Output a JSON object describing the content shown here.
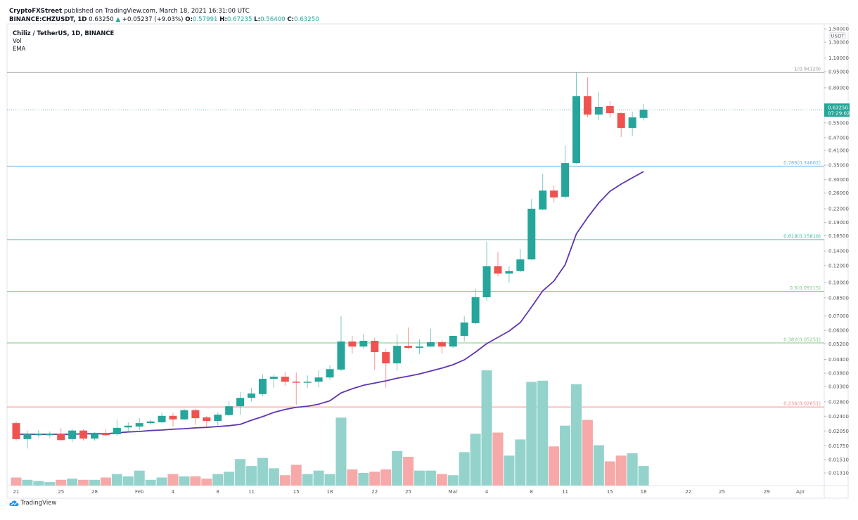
{
  "header": {
    "publisher": "CryptoFXStreet",
    "published_text": "published on TradingView.com, March 18, 2021 16:31:00 UTC",
    "symbol": "BINANCE:CHZUSDT, 1D",
    "last": "0.63250",
    "up_arrow": "▲",
    "change": "+0.05237 (+9.03%)",
    "o_label": "O:",
    "o": "0.57991",
    "h_label": "H:",
    "h": "0.67235",
    "l_label": "L:",
    "l": "0.56400",
    "c_label": "C:",
    "c": "0.63250"
  },
  "legend": {
    "title": "Chiliz / TetherUS, 1D, BINANCE",
    "vol": "Vol",
    "ema": "EMA"
  },
  "footer": {
    "brand": "TradingView"
  },
  "colors": {
    "up": "#26a69a",
    "down": "#ef5350",
    "vol_up": "#93d3cc",
    "vol_down": "#f6a9a8",
    "ema": "#5e35b1"
  },
  "chart_data": {
    "type": "candlestick",
    "title": "Chiliz / TetherUS, 1D, BINANCE",
    "y_scale": "log",
    "currency": "USDT",
    "ylim": [
      0.0125,
      1.55
    ],
    "y_ticks": [
      "1.50000",
      "1.30000",
      "1.10000",
      "0.95000",
      "0.80000",
      "0.55000",
      "0.47000",
      "0.41000",
      "0.35000",
      "0.30000",
      "0.26000",
      "0.22000",
      "0.19000",
      "0.16500",
      "0.14000",
      "0.12000",
      "0.10000",
      "0.08500",
      "0.07000",
      "0.06000",
      "0.05200",
      "0.04400",
      "0.03800",
      "0.03300",
      "0.02800",
      "0.02400",
      "0.02050",
      "0.01750",
      "0.01510",
      "0.01310"
    ],
    "x_ticks": [
      {
        "label": "21",
        "date": "2021-01-21"
      },
      {
        "label": "25",
        "date": "2021-01-25"
      },
      {
        "label": "28",
        "date": "2021-01-28"
      },
      {
        "label": "Feb",
        "date": "2021-02-01"
      },
      {
        "label": "4",
        "date": "2021-02-04"
      },
      {
        "label": "8",
        "date": "2021-02-08"
      },
      {
        "label": "11",
        "date": "2021-02-11"
      },
      {
        "label": "15",
        "date": "2021-02-15"
      },
      {
        "label": "18",
        "date": "2021-02-18"
      },
      {
        "label": "22",
        "date": "2021-02-22"
      },
      {
        "label": "25",
        "date": "2021-02-25"
      },
      {
        "label": "Mar",
        "date": "2021-03-01"
      },
      {
        "label": "4",
        "date": "2021-03-04"
      },
      {
        "label": "8",
        "date": "2021-03-08"
      },
      {
        "label": "11",
        "date": "2021-03-11"
      },
      {
        "label": "15",
        "date": "2021-03-15"
      },
      {
        "label": "18",
        "date": "2021-03-18"
      },
      {
        "label": "22",
        "date": "2021-03-22"
      },
      {
        "label": "25",
        "date": "2021-03-25"
      },
      {
        "label": "29",
        "date": "2021-03-29"
      },
      {
        "label": "Apr",
        "date": "2021-04-01"
      }
    ],
    "x_range": [
      "2021-01-21",
      "2021-04-03"
    ],
    "current_price": {
      "value": 0.6325,
      "label": "0.63250",
      "countdown": "07:29:02"
    },
    "fib_levels": [
      {
        "label": "1(0.94129)",
        "value": 0.94129,
        "color": "#9e9e9e"
      },
      {
        "label": "0.786(0.34662)",
        "value": 0.34662,
        "color": "#64b5f6"
      },
      {
        "label": "0.618(0.15818)",
        "value": 0.15818,
        "color": "#4db6ac"
      },
      {
        "label": "0.5(0.09115)",
        "value": 0.09115,
        "color": "#81c784"
      },
      {
        "label": "0.382(0.05251)",
        "value": 0.05251,
        "color": "#81c784"
      },
      {
        "label": "0.236(0.02651)",
        "value": 0.02651,
        "color": "#f28b8b"
      }
    ],
    "volume_note": "relative volume (max = 100), no volume scale shown",
    "candles_columns": [
      "date",
      "open",
      "high",
      "low",
      "close",
      "volume_rel",
      "ema"
    ],
    "candles": [
      [
        "2021-01-21",
        0.0223,
        0.0227,
        0.0185,
        0.0188,
        7,
        0.0198
      ],
      [
        "2021-01-22",
        0.0188,
        0.0206,
        0.017,
        0.0198,
        5,
        0.0198
      ],
      [
        "2021-01-23",
        0.0196,
        0.0207,
        0.0191,
        0.0199,
        4,
        0.0198
      ],
      [
        "2021-01-24",
        0.0196,
        0.0204,
        0.0191,
        0.0199,
        3,
        0.0198
      ],
      [
        "2021-01-25",
        0.0199,
        0.0212,
        0.0185,
        0.0186,
        5,
        0.0198
      ],
      [
        "2021-01-26",
        0.0188,
        0.0209,
        0.0182,
        0.0206,
        6,
        0.0198
      ],
      [
        "2021-01-27",
        0.0206,
        0.0209,
        0.0185,
        0.0189,
        5,
        0.0199
      ],
      [
        "2021-01-28",
        0.0189,
        0.0203,
        0.0185,
        0.0201,
        5,
        0.0199
      ],
      [
        "2021-01-29",
        0.0201,
        0.0209,
        0.0194,
        0.0196,
        7,
        0.0199
      ],
      [
        "2021-01-30",
        0.0198,
        0.0232,
        0.0195,
        0.0212,
        10,
        0.0201
      ],
      [
        "2021-01-31",
        0.0213,
        0.0225,
        0.0203,
        0.0217,
        8,
        0.0203
      ],
      [
        "2021-02-01",
        0.0215,
        0.0235,
        0.0207,
        0.0223,
        13,
        0.0204
      ],
      [
        "2021-02-02",
        0.0223,
        0.0232,
        0.0219,
        0.0227,
        5,
        0.0206
      ],
      [
        "2021-02-03",
        0.0225,
        0.0248,
        0.0223,
        0.0241,
        7,
        0.0207
      ],
      [
        "2021-02-04",
        0.0241,
        0.0248,
        0.0215,
        0.0232,
        10,
        0.0209
      ],
      [
        "2021-02-05",
        0.0232,
        0.026,
        0.023,
        0.0256,
        8,
        0.021
      ],
      [
        "2021-02-06",
        0.0256,
        0.026,
        0.0219,
        0.0235,
        8,
        0.0212
      ],
      [
        "2021-02-07",
        0.0237,
        0.0241,
        0.0215,
        0.0228,
        6,
        0.0213
      ],
      [
        "2021-02-08",
        0.0228,
        0.025,
        0.0217,
        0.0244,
        10,
        0.0215
      ],
      [
        "2021-02-09",
        0.0243,
        0.0282,
        0.0241,
        0.0267,
        12,
        0.0217
      ],
      [
        "2021-02-10",
        0.0267,
        0.0311,
        0.0244,
        0.0292,
        23,
        0.022
      ],
      [
        "2021-02-11",
        0.0292,
        0.0325,
        0.0281,
        0.0306,
        17,
        0.023
      ],
      [
        "2021-02-12",
        0.0304,
        0.0375,
        0.0298,
        0.0358,
        24,
        0.0239
      ],
      [
        "2021-02-13",
        0.0358,
        0.0375,
        0.0325,
        0.0366,
        15,
        0.025
      ],
      [
        "2021-02-14",
        0.0366,
        0.0383,
        0.0332,
        0.0347,
        9,
        0.0258
      ],
      [
        "2021-02-15",
        0.0347,
        0.0383,
        0.0271,
        0.0345,
        18,
        0.0264
      ],
      [
        "2021-02-16",
        0.0345,
        0.0371,
        0.0325,
        0.0347,
        10,
        0.0267
      ],
      [
        "2021-02-17",
        0.0347,
        0.0392,
        0.0327,
        0.0363,
        13,
        0.0273
      ],
      [
        "2021-02-18",
        0.0363,
        0.0414,
        0.0355,
        0.0397,
        10,
        0.0283
      ],
      [
        "2021-02-19",
        0.0395,
        0.0698,
        0.0389,
        0.0533,
        59,
        0.0308
      ],
      [
        "2021-02-20",
        0.0533,
        0.0566,
        0.0469,
        0.0505,
        14,
        0.0322
      ],
      [
        "2021-02-21",
        0.0505,
        0.0577,
        0.0494,
        0.0537,
        11,
        0.0334
      ],
      [
        "2021-02-22",
        0.0537,
        0.0555,
        0.0392,
        0.0476,
        12,
        0.0342
      ],
      [
        "2021-02-23",
        0.0476,
        0.0491,
        0.0325,
        0.0422,
        14,
        0.035
      ],
      [
        "2021-02-24",
        0.0422,
        0.0577,
        0.0389,
        0.0509,
        30,
        0.036
      ],
      [
        "2021-02-25",
        0.0509,
        0.0619,
        0.0491,
        0.0498,
        25,
        0.0368
      ],
      [
        "2021-02-26",
        0.0498,
        0.0545,
        0.0466,
        0.0505,
        13,
        0.0377
      ],
      [
        "2021-02-27",
        0.0505,
        0.0611,
        0.0502,
        0.0529,
        13,
        0.0389
      ],
      [
        "2021-02-28",
        0.0529,
        0.0541,
        0.0466,
        0.0505,
        10,
        0.0401
      ],
      [
        "2021-03-01",
        0.0505,
        0.0566,
        0.0498,
        0.0566,
        9,
        0.0416
      ],
      [
        "2021-03-02",
        0.0566,
        0.0698,
        0.0533,
        0.0653,
        29,
        0.0438
      ],
      [
        "2021-03-03",
        0.0648,
        0.0936,
        0.064,
        0.0855,
        45,
        0.0476
      ],
      [
        "2021-03-04",
        0.0855,
        0.155,
        0.0823,
        0.119,
        100,
        0.0521
      ],
      [
        "2021-03-05",
        0.119,
        0.139,
        0.107,
        0.11,
        46,
        0.0557
      ],
      [
        "2021-03-06",
        0.11,
        0.119,
        0.1,
        0.113,
        26,
        0.0596
      ],
      [
        "2021-03-07",
        0.113,
        0.143,
        0.112,
        0.128,
        40,
        0.0653
      ],
      [
        "2021-03-08",
        0.128,
        0.244,
        0.127,
        0.22,
        90,
        0.077
      ],
      [
        "2021-03-09",
        0.218,
        0.32,
        0.217,
        0.267,
        91,
        0.0915
      ],
      [
        "2021-03-10",
        0.267,
        0.282,
        0.235,
        0.248,
        34,
        0.1016
      ],
      [
        "2021-03-11",
        0.25,
        0.432,
        0.244,
        0.358,
        52,
        0.121
      ],
      [
        "2021-03-12",
        0.358,
        0.943,
        0.356,
        0.731,
        88,
        0.168
      ],
      [
        "2021-03-13",
        0.731,
        0.895,
        0.583,
        0.601,
        57,
        0.2
      ],
      [
        "2021-03-14",
        0.601,
        0.764,
        0.566,
        0.653,
        35,
        0.234
      ],
      [
        "2021-03-15",
        0.658,
        0.693,
        0.583,
        0.61,
        21,
        0.265
      ],
      [
        "2021-03-16",
        0.61,
        0.615,
        0.473,
        0.521,
        26,
        0.286
      ],
      [
        "2021-03-17",
        0.521,
        0.619,
        0.48,
        0.583,
        28,
        0.306
      ],
      [
        "2021-03-18",
        0.57991,
        0.67235,
        0.564,
        0.6325,
        17,
        0.327
      ]
    ]
  }
}
